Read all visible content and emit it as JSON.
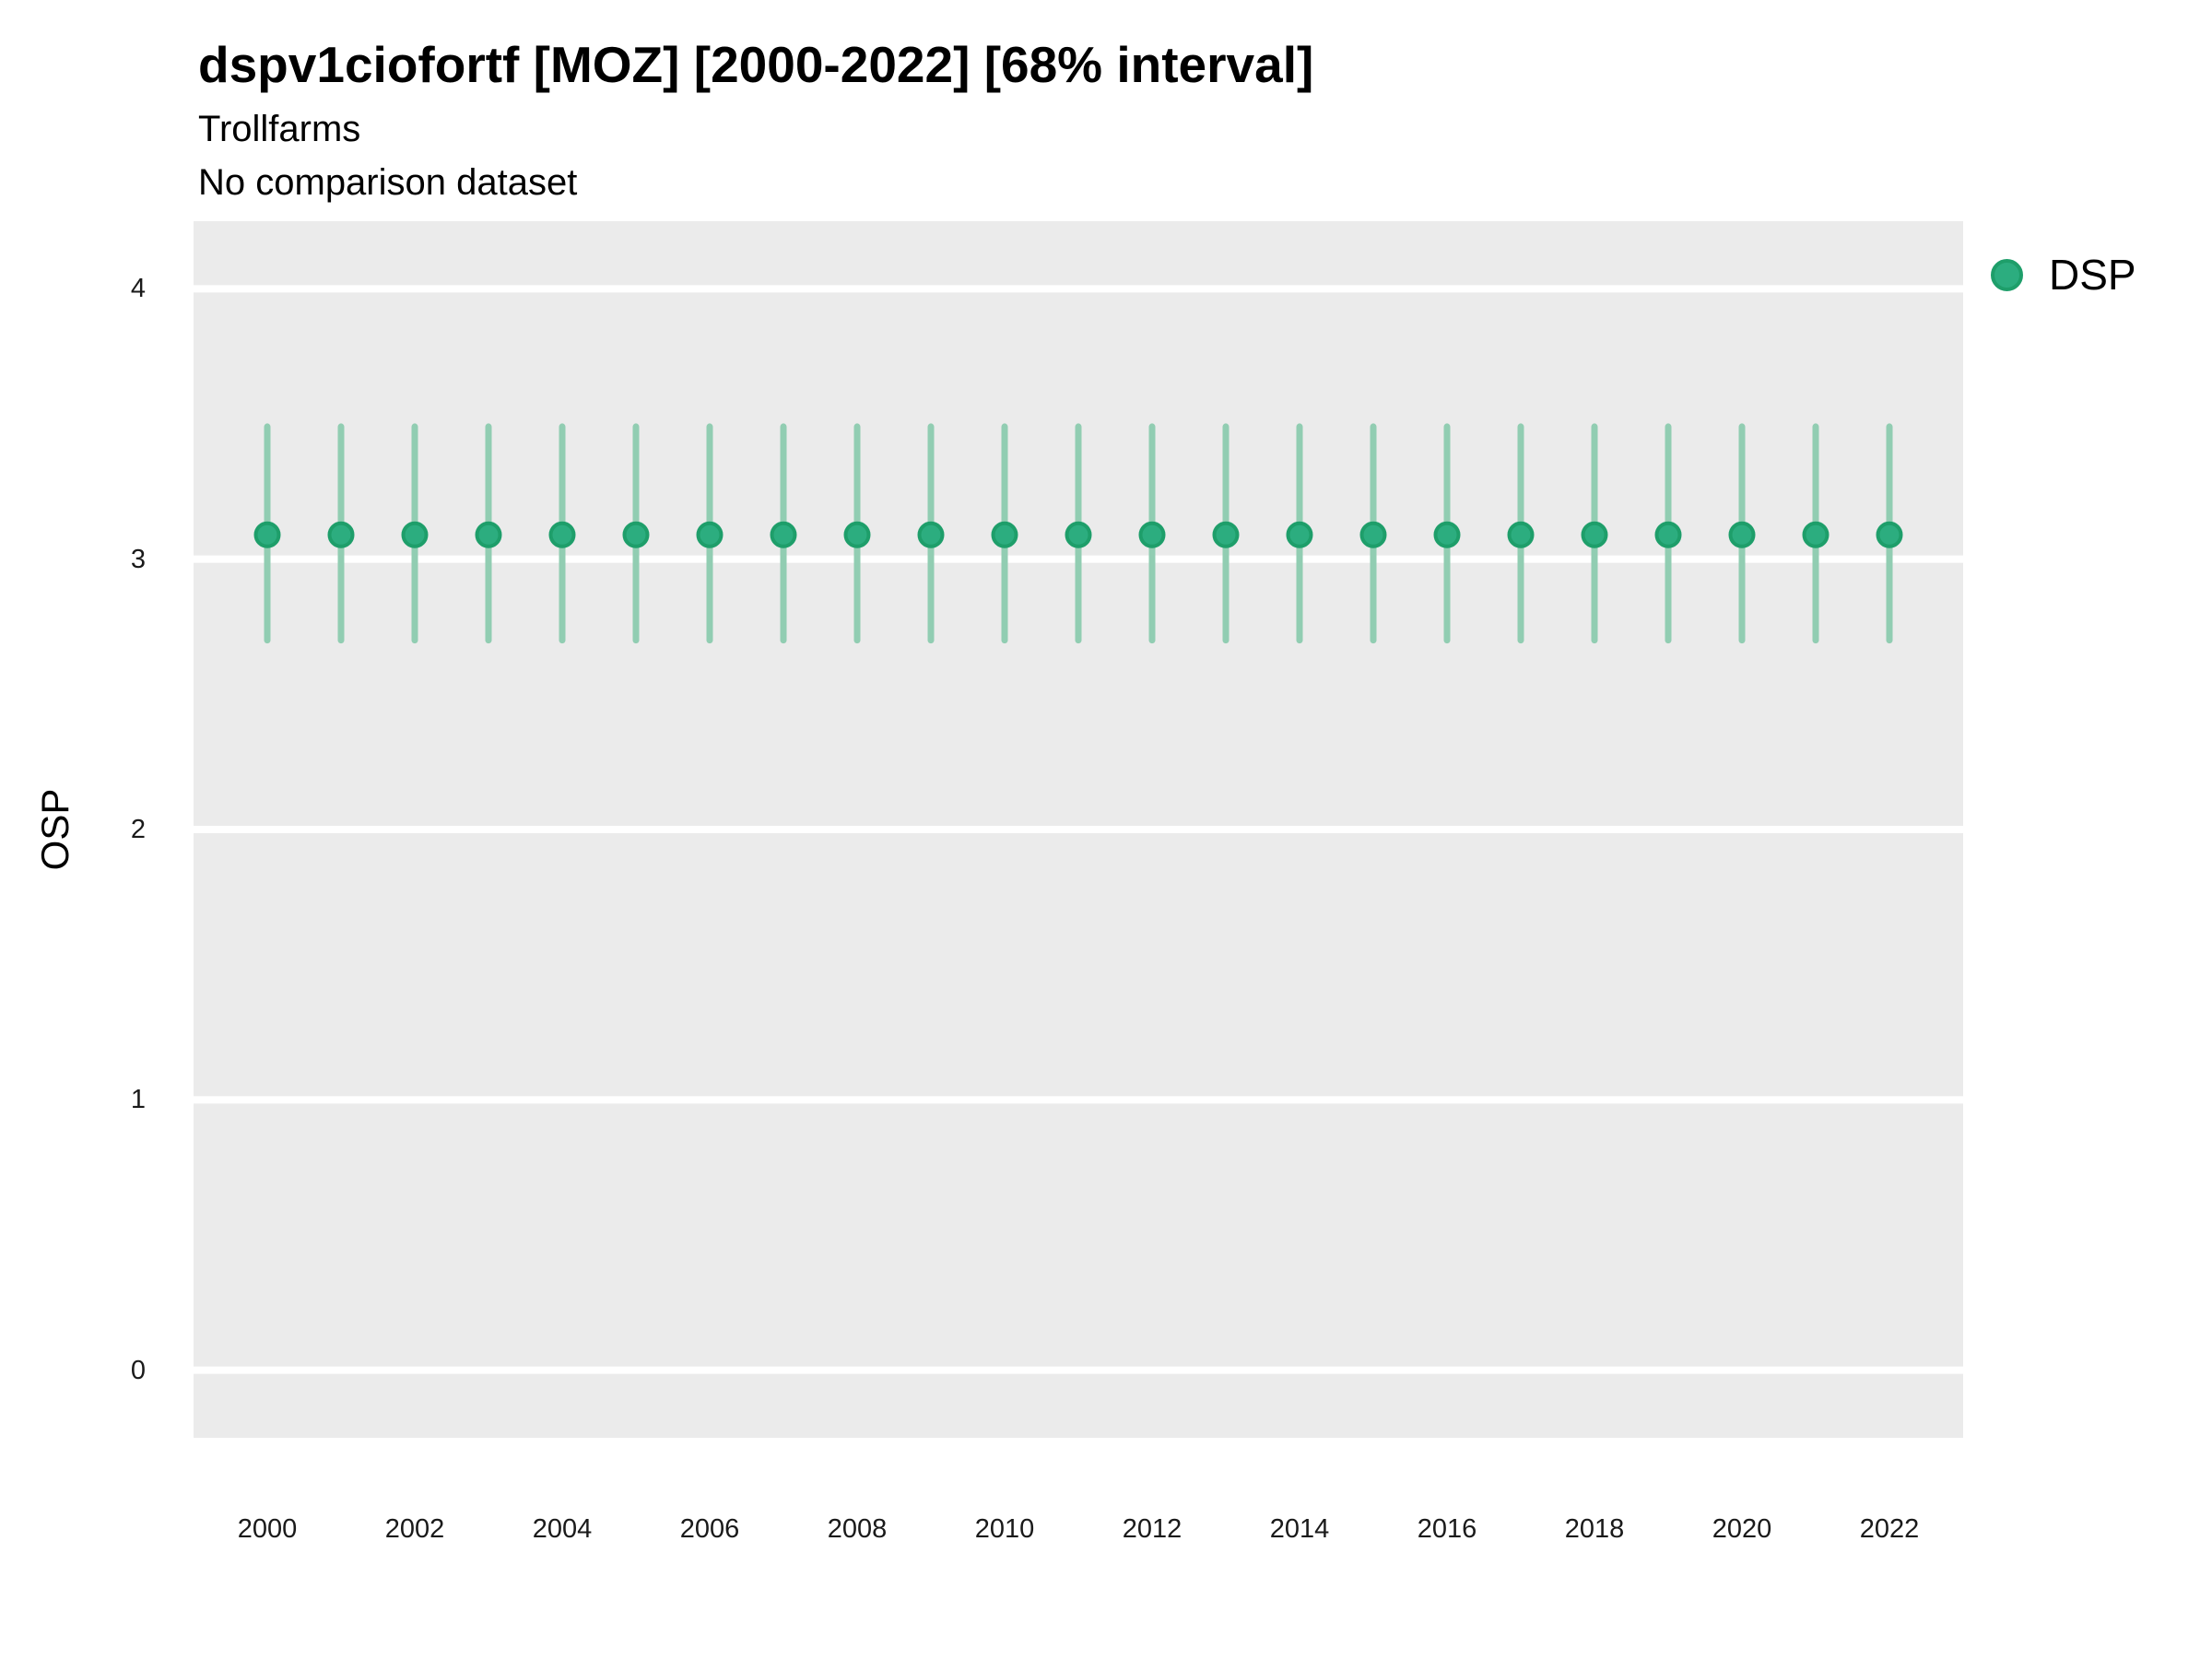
{
  "header": {
    "title": "dspv1ciofortf [MOZ] [2000-2022] [68% interval]",
    "subtitle": "Trollfarms",
    "comparison_note": "No comparison dataset"
  },
  "legend": {
    "position": "right-top",
    "items": [
      {
        "label": "DSP",
        "marker": "circle-icon",
        "fill": "#2cad7f",
        "stroke": "#1e9e6a"
      }
    ]
  },
  "chart_data": {
    "type": "scatter",
    "title": "dspv1ciofortf [MOZ] [2000-2022] [68% interval]",
    "subtitle": "Trollfarms",
    "note": "No comparison dataset",
    "xlabel": "",
    "ylabel": "OSP",
    "interval_level": "68%",
    "x": [
      2000,
      2001,
      2002,
      2003,
      2004,
      2005,
      2006,
      2007,
      2008,
      2009,
      2010,
      2011,
      2012,
      2013,
      2014,
      2015,
      2016,
      2017,
      2018,
      2019,
      2020,
      2021,
      2022
    ],
    "series": [
      {
        "name": "DSP",
        "values": [
          3.09,
          3.09,
          3.09,
          3.09,
          3.09,
          3.09,
          3.09,
          3.09,
          3.09,
          3.09,
          3.09,
          3.09,
          3.09,
          3.09,
          3.09,
          3.09,
          3.09,
          3.09,
          3.09,
          3.09,
          3.09,
          3.09,
          3.09
        ],
        "interval_low": [
          2.7,
          2.7,
          2.7,
          2.7,
          2.7,
          2.7,
          2.7,
          2.7,
          2.7,
          2.7,
          2.7,
          2.7,
          2.7,
          2.7,
          2.7,
          2.7,
          2.7,
          2.7,
          2.7,
          2.7,
          2.7,
          2.7,
          2.7
        ],
        "interval_high": [
          3.49,
          3.49,
          3.49,
          3.49,
          3.49,
          3.49,
          3.49,
          3.49,
          3.49,
          3.49,
          3.49,
          3.49,
          3.49,
          3.49,
          3.49,
          3.49,
          3.49,
          3.49,
          3.49,
          3.49,
          3.49,
          3.49,
          3.49
        ],
        "point_color": "#2cad7f",
        "point_stroke": "#1e9e6a",
        "interval_color": "#91cdb2"
      }
    ],
    "xlim": [
      1999,
      2023
    ],
    "ylim": [
      -0.25,
      4.25
    ],
    "x_ticks": [
      2000,
      2002,
      2004,
      2006,
      2008,
      2010,
      2012,
      2014,
      2016,
      2018,
      2020,
      2022
    ],
    "y_ticks": [
      0,
      1,
      2,
      3,
      4
    ],
    "grid": "horizontal-major-only",
    "grid_color": "#ffffff",
    "panel_bg": "#ebebeb",
    "legend_position": "right-top"
  }
}
